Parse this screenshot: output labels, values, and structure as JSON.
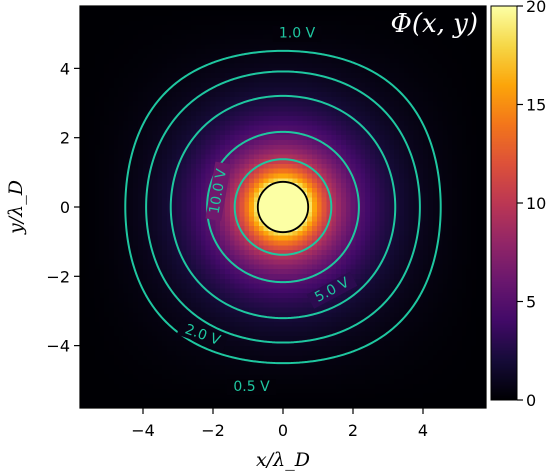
{
  "chart_data": {
    "type": "heatmap",
    "title": "Φ(x, y)",
    "xlabel": "x/λ_D",
    "ylabel": "y/λ_D",
    "xlim": [
      -5.8,
      5.8
    ],
    "ylim": [
      -5.8,
      5.8
    ],
    "x_ticks": [
      -4,
      -2,
      0,
      2,
      4
    ],
    "y_ticks": [
      -4,
      -2,
      0,
      2,
      4
    ],
    "x_tick_labels": [
      "−4",
      "−2",
      "0",
      "2",
      "4"
    ],
    "y_tick_labels": [
      "−4",
      "−2",
      "0",
      "2",
      "4"
    ],
    "colormap": "inferno",
    "colorbar": {
      "range": [
        0,
        20
      ],
      "ticks": [
        0,
        5,
        10,
        15,
        20
      ],
      "tick_labels": [
        "0",
        "5",
        "10",
        "15",
        "20"
      ]
    },
    "conductor": {
      "center": [
        0,
        0
      ],
      "radius": 0.72,
      "potential_v": 20,
      "outline_color": "#000000"
    },
    "boundary_potential_v": 0,
    "contours": [
      {
        "value": 0.5,
        "label": "0.5 V",
        "label_position": [
          -0.9,
          -5.2
        ],
        "label_angle": 0
      },
      {
        "value": 1.0,
        "label": "1.0 V",
        "label_position": [
          0.4,
          5.0
        ],
        "label_angle": 0
      },
      {
        "value": 2.0,
        "label": "2.0 V",
        "label_position": [
          -2.3,
          -3.7
        ],
        "label_angle": 20
      },
      {
        "value": 5.0,
        "label": "5.0 V",
        "label_position": [
          1.4,
          -2.4
        ],
        "label_angle": -28
      },
      {
        "value": 10.0,
        "label": "10.0 V",
        "label_position": [
          -1.85,
          0.45
        ],
        "label_angle": -80
      }
    ],
    "contour_color": "#1fc7a0",
    "grid": false
  }
}
